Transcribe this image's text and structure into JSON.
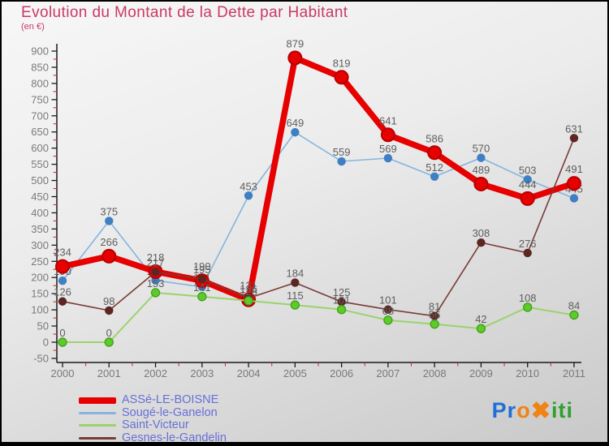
{
  "header": {
    "title": "Evolution du Montant de la Dette par Habitant",
    "subtitle": "(en €)"
  },
  "colors": {
    "title": "#c83a64",
    "axis": "#1a1a1a",
    "tick_label": "#7a7a7a",
    "minor_tick": "#cc2222",
    "data_label": "#5e5e5e",
    "legend_text": "#6670d8"
  },
  "chart_data": {
    "type": "line",
    "x": [
      "2000",
      "2001",
      "2002",
      "2003",
      "2004",
      "2005",
      "2006",
      "2007",
      "2008",
      "2009",
      "2010",
      "2011"
    ],
    "series": [
      {
        "name": "ASSé-LE-BOISNE",
        "color": "#e60000",
        "marker_color": "#e60000",
        "marker_edge": "#b70000",
        "values": [
          234,
          266,
          218,
          190,
          131,
          879,
          819,
          641,
          586,
          489,
          444,
          491
        ]
      },
      {
        "name": "Sougé-le-Ganelon",
        "color": "#85b4e0",
        "marker_color": "#3f7fc4",
        "marker_edge": "#3f7fc4",
        "values": [
          190,
          375,
          191,
          171,
          453,
          649,
          559,
          569,
          512,
          570,
          503,
          445
        ]
      },
      {
        "name": "Saint-Victeur",
        "color": "#9ad36b",
        "marker_color": "#5ecb2a",
        "marker_edge": "#41a31c",
        "values": [
          0,
          0,
          153,
          141,
          128,
          115,
          101,
          68,
          56,
          42,
          108,
          84
        ]
      },
      {
        "name": "Gesnes-le-Gandelin",
        "color": "#7a3b36",
        "marker_color": "#5c2723",
        "marker_edge": "#5c2723",
        "values": [
          126,
          98,
          217,
          195,
          136,
          184,
          125,
          101,
          81,
          308,
          276,
          631
        ]
      }
    ],
    "ylim": [
      -50,
      900
    ],
    "ytick_step": 50,
    "yticks": [
      900,
      850,
      800,
      750,
      700,
      650,
      600,
      550,
      500,
      450,
      400,
      350,
      300,
      250,
      200,
      150,
      100,
      50,
      0,
      -50
    ],
    "grid": false,
    "legend_position": "bottom-left",
    "data_labels": true
  },
  "logo": {
    "segments": [
      {
        "text": "Pr",
        "color": "#1f6fd6"
      },
      {
        "text": "o",
        "color": "#ef8318"
      },
      {
        "text": "✖",
        "color": "#ef8318"
      },
      {
        "text": "iti",
        "color": "#2fa02f"
      }
    ]
  }
}
